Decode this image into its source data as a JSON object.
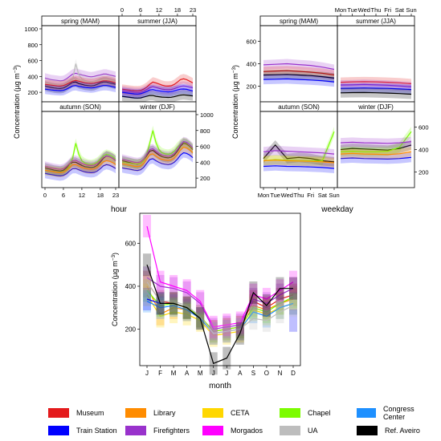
{
  "y_label": "Concentration (µg m",
  "y_label_exp": "−3",
  "y_label_close": ")",
  "chart_data": [
    {
      "type": "line",
      "id": "hour",
      "xlabel": "hour",
      "x_ticks": [
        0,
        6,
        12,
        18,
        23
      ],
      "y_ticks": [
        200,
        400,
        600,
        800,
        1000
      ],
      "ylim": [
        80,
        1040
      ],
      "xlim": [
        0,
        23
      ],
      "panels": [
        {
          "name": "spring (MAM)",
          "series": {
            "Ref. Aveiro": [
              280,
              270,
              262,
              255,
              250,
              248,
              255,
              275,
              300,
              325,
              330,
              310,
              300,
              290,
              285,
              280,
              285,
              300,
              320,
              330,
              330,
              320,
              310,
              300
            ],
            "Firefighters": [
              380,
              370,
              360,
              355,
              350,
              345,
              350,
              370,
              400,
              430,
              440,
              430,
              420,
              410,
              400,
              395,
              400,
              410,
              420,
              430,
              430,
              420,
              410,
              400
            ],
            "UA": [
              320,
              315,
              305,
              300,
              295,
              290,
              295,
              310,
              330,
              360,
              560,
              420,
              370,
              350,
              340,
              335,
              340,
              350,
              360,
              370,
              370,
              360,
              350,
              340
            ],
            "Museum": [
              300,
              295,
              290,
              285,
              280,
              278,
              285,
              300,
              320,
              340,
              350,
              340,
              330,
              320,
              315,
              312,
              315,
              325,
              335,
              345,
              345,
              340,
              330,
              320
            ],
            "Train Station": [
              240,
              235,
              230,
              226,
              222,
              220,
              225,
              240,
              260,
              280,
              285,
              275,
              268,
              262,
              258,
              255,
              258,
              268,
              278,
              285,
              285,
              280,
              270,
              262
            ]
          }
        },
        {
          "name": "summer (JJA)",
          "series": {
            "Ref. Aveiro": [
              150,
              145,
              140,
              135,
              130,
              128,
              130,
              140,
              150,
              160,
              160,
              150,
              145,
              140,
              138,
              136,
              138,
              145,
              155,
              165,
              168,
              165,
              160,
              155
            ],
            "Firefighters": [
              220,
              215,
              210,
              205,
              200,
              198,
              200,
              215,
              235,
              260,
              270,
              260,
              250,
              240,
              235,
              232,
              235,
              245,
              260,
              275,
              280,
              275,
              265,
              255
            ],
            "Museum": [
              240,
              235,
              230,
              225,
              220,
              218,
              222,
              240,
              265,
              300,
              330,
              320,
              305,
              290,
              280,
              278,
              282,
              300,
              330,
              360,
              370,
              360,
              340,
              320
            ],
            "Train Station": [
              200,
              195,
              190,
              185,
              180,
              178,
              182,
              195,
              210,
              230,
              235,
              225,
              218,
              212,
              208,
              205,
              208,
              218,
              230,
              240,
              242,
              238,
              228,
              218
            ]
          }
        },
        {
          "name": "autumn (SON)",
          "series": {
            "Ref. Aveiro": [
              330,
              320,
              310,
              300,
              295,
              290,
              300,
              330,
              370,
              400,
              400,
              380,
              360,
              345,
              340,
              335,
              340,
              360,
              400,
              450,
              480,
              470,
              450,
              420
            ],
            "Chapel": [
              300,
              295,
              290,
              285,
              280,
              278,
              285,
              310,
              360,
              450,
              640,
              500,
              420,
              390,
              375,
              370,
              380,
              400,
              440,
              480,
              500,
              490,
              470,
              440
            ],
            "Firefighters": [
              350,
              340,
              330,
              322,
              315,
              310,
              320,
              345,
              385,
              420,
              425,
              405,
              385,
              370,
              362,
              358,
              362,
              380,
              420,
              460,
              480,
              470,
              450,
              420
            ],
            "Train Station": [
              260,
              252,
              245,
              238,
              232,
              228,
              235,
              255,
              290,
              320,
              322,
              305,
              290,
              278,
              272,
              268,
              272,
              288,
              320,
              355,
              370,
              362,
              345,
              322
            ],
            "Library": [
              300,
              292,
              285,
              278,
              272,
              268,
              275,
              298,
              335,
              368,
              370,
              352,
              335,
              322,
              315,
              312,
              316,
              335,
              370,
              405,
              420,
              412,
              395,
              370
            ]
          }
        },
        {
          "name": "winter (DJF)",
          "series": {
            "Ref. Aveiro": [
              420,
              410,
              400,
              390,
              380,
              375,
              385,
              420,
              480,
              540,
              550,
              520,
              490,
              470,
              460,
              455,
              465,
              490,
              540,
              600,
              640,
              630,
              600,
              560
            ],
            "Chapel": [
              400,
              395,
              390,
              385,
              380,
              378,
              385,
              420,
              500,
              640,
              800,
              650,
              560,
              520,
              505,
              500,
              510,
              540,
              590,
              630,
              650,
              640,
              610,
              570
            ],
            "Firefighters": [
              440,
              430,
              420,
              410,
              400,
              395,
              405,
              440,
              500,
              560,
              570,
              540,
              510,
              490,
              480,
              475,
              485,
              510,
              560,
              620,
              660,
              650,
              620,
              580
            ],
            "Train Station": [
              330,
              322,
              315,
              308,
              300,
              296,
              305,
              335,
              385,
              435,
              445,
              420,
              398,
              382,
              375,
              370,
              378,
              400,
              440,
              490,
              520,
              512,
              490,
              458
            ],
            "Library": [
              380,
              372,
              364,
              356,
              348,
              344,
              352,
              385,
              440,
              495,
              505,
              478,
              452,
              435,
              427,
              422,
              430,
              455,
              500,
              555,
              590,
              580,
              555,
              520
            ]
          }
        }
      ]
    },
    {
      "type": "line",
      "id": "weekday",
      "xlabel": "weekday",
      "x_ticks": [
        "Mon",
        "Tue",
        "Wed",
        "Thu",
        "Fri",
        "Sat",
        "Sun"
      ],
      "y_ticks": [
        200,
        400,
        600
      ],
      "ylim": [
        60,
        740
      ],
      "panels": [
        {
          "name": "spring (MAM)",
          "series": {
            "Firefighters": [
              390,
              395,
              400,
              392,
              385,
              370,
              350
            ],
            "Museum": [
              330,
              335,
              338,
              332,
              325,
              315,
              300
            ],
            "Ref. Aveiro": [
              300,
              302,
              305,
              300,
              295,
              285,
              272
            ],
            "Train Station": [
              260,
              262,
              265,
              260,
              255,
              248,
              238
            ]
          }
        },
        {
          "name": "summer (JJA)",
          "series": {
            "Museum": [
              235,
              238,
              240,
              238,
              235,
              230,
              222
            ],
            "Firefighters": [
              210,
              212,
              215,
              212,
              208,
              202,
              195
            ],
            "Train Station": [
              180,
              182,
              184,
              182,
              180,
              175,
              170
            ],
            "Ref. Aveiro": [
              140,
              142,
              143,
              141,
              138,
              134,
              128
            ]
          }
        },
        {
          "name": "autumn (SON)",
          "series": {
            "Ref. Aveiro": [
              320,
              440,
              320,
              330,
              320,
              300,
              290
            ],
            "Chapel": [
              300,
              310,
              305,
              300,
              300,
              300,
              560
            ],
            "Firefighters": [
              380,
              390,
              385,
              380,
              375,
              370,
              360
            ],
            "Train Station": [
              250,
              255,
              250,
              248,
              245,
              240,
              232
            ],
            "Library": [
              300,
              305,
              300,
              298,
              295,
              290,
              282
            ]
          }
        },
        {
          "name": "winter (DJF)",
          "series": {
            "Ref. Aveiro": [
              400,
              410,
              405,
              400,
              395,
              410,
              440
            ],
            "Chapel": [
              380,
              385,
              380,
              380,
              385,
              420,
              560
            ],
            "Firefighters": [
              460,
              465,
              460,
              458,
              455,
              460,
              470
            ],
            "Train Station": [
              320,
              325,
              320,
              318,
              315,
              320,
              330
            ],
            "Library": [
              360,
              365,
              360,
              358,
              355,
              362,
              380
            ]
          }
        }
      ]
    },
    {
      "type": "line",
      "id": "month",
      "xlabel": "month",
      "categories": [
        "J",
        "F",
        "M",
        "A",
        "M",
        "J",
        "J",
        "A",
        "S",
        "O",
        "N",
        "D"
      ],
      "y_ticks": [
        200,
        400,
        600
      ],
      "ylim": [
        30,
        740
      ],
      "series": [
        {
          "name": "Museum",
          "values": [
            420,
            330,
            320,
            300,
            260,
            190,
            200,
            210,
            330,
            300,
            340,
            360
          ]
        },
        {
          "name": "Library",
          "values": [
            400,
            270,
            300,
            290,
            250,
            180,
            190,
            200,
            310,
            290,
            320,
            340
          ]
        },
        {
          "name": "CETA",
          "values": [
            360,
            260,
            280,
            270,
            240,
            170,
            180,
            190,
            290,
            270,
            300,
            320
          ]
        },
        {
          "name": "Chapel",
          "values": [
            380,
            310,
            320,
            300,
            260,
            190,
            200,
            210,
            300,
            280,
            320,
            350
          ]
        },
        {
          "name": "Congress Center",
          "values": [
            330,
            300,
            310,
            290,
            250,
            180,
            190,
            200,
            280,
            260,
            300,
            320
          ]
        },
        {
          "name": "Train Station",
          "values": [
            340,
            320,
            null,
            null,
            null,
            null,
            null,
            null,
            null,
            null,
            null,
            240
          ]
        },
        {
          "name": "Firefighters",
          "values": [
            440,
            400,
            390,
            370,
            320,
            200,
            210,
            220,
            340,
            320,
            360,
            390
          ]
        },
        {
          "name": "Morgados",
          "values": [
            680,
            420,
            400,
            380,
            330,
            210,
            220,
            230,
            360,
            340,
            380,
            420
          ]
        },
        {
          "name": "UA",
          "values": [
            420,
            330,
            330,
            310,
            260,
            180,
            190,
            200,
            250,
            240,
            280,
            310
          ]
        },
        {
          "name": "Ref. Aveiro",
          "values": [
            500,
            320,
            320,
            300,
            250,
            40,
            65,
            180,
            370,
            310,
            390,
            390
          ]
        }
      ]
    }
  ],
  "legend": [
    {
      "name": "Museum",
      "color": "#e41a1c"
    },
    {
      "name": "Library",
      "color": "#ff8c00"
    },
    {
      "name": "CETA",
      "color": "#ffd700"
    },
    {
      "name": "Chapel",
      "color": "#7cfc00"
    },
    {
      "name": "Congress Center",
      "color": "#1e90ff"
    },
    {
      "name": "Train Station",
      "color": "#0000ff"
    },
    {
      "name": "Firefighters",
      "color": "#9932cc"
    },
    {
      "name": "Morgados",
      "color": "#ff00ff"
    },
    {
      "name": "UA",
      "color": "#bdbdbd"
    },
    {
      "name": "Ref. Aveiro",
      "color": "#000000"
    }
  ]
}
